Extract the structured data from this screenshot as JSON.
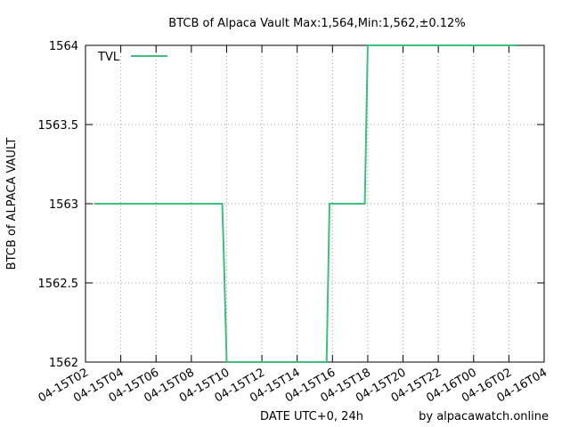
{
  "chart_data": {
    "type": "line",
    "title": "BTCB of Alpaca Vault Max:1,564,Min:1,562,±0.12%",
    "xlabel": "DATE UTC+0, 24h",
    "ylabel": "BTCB of ALPACA VAULT",
    "credit": "by alpacawatch.online",
    "x_range": [
      "04-15T02:00",
      "04-16T04:00"
    ],
    "ylim": [
      1562,
      1564
    ],
    "y_ticks": [
      1562,
      1562.5,
      1563,
      1563.5,
      1564
    ],
    "y_tick_labels": [
      "1562",
      "1562.5",
      "1563",
      "1563.5",
      "1564"
    ],
    "x_ticks": [
      "04-15T02:00",
      "04-15T04:00",
      "04-15T06:00",
      "04-15T08:00",
      "04-15T10:00",
      "04-15T12:00",
      "04-15T14:00",
      "04-15T16:00",
      "04-15T18:00",
      "04-15T20:00",
      "04-15T22:00",
      "04-16T00:00",
      "04-16T02:00",
      "04-16T04:00"
    ],
    "x_tick_labels": [
      "04-15T02",
      "04-15T04",
      "04-15T06",
      "04-15T08",
      "04-15T10",
      "04-15T12",
      "04-15T14",
      "04-15T16",
      "04-15T18",
      "04-15T20",
      "04-15T22",
      "04-16T00",
      "04-16T02",
      "04-16T04"
    ],
    "grid": true,
    "legend_position": "top-left",
    "series": [
      {
        "name": "TVL",
        "color": "#3cbf7f",
        "x": [
          "04-15T02:30",
          "04-15T09:45",
          "04-15T09:50",
          "04-15T10:00",
          "04-15T15:40",
          "04-15T15:50",
          "04-15T17:50",
          "04-15T18:00",
          "04-16T02:30"
        ],
        "y": [
          1563,
          1563,
          1562.7,
          1562,
          1562,
          1563,
          1563,
          1564,
          1564
        ]
      }
    ]
  }
}
